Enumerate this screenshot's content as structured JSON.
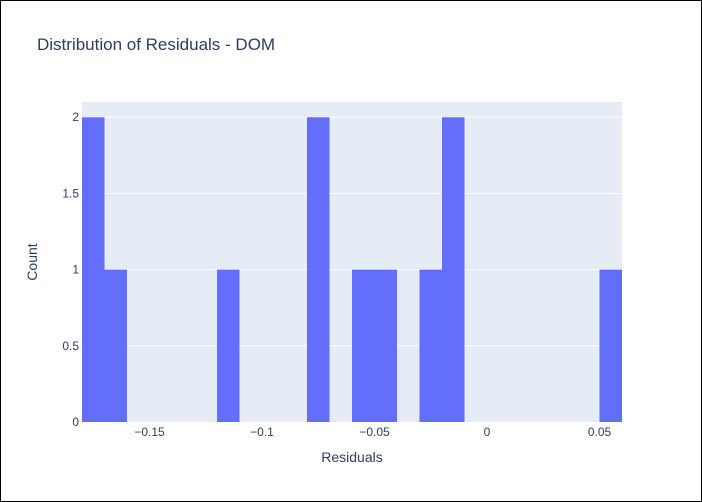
{
  "chart_data": {
    "type": "histogram",
    "title": "Distribution of Residuals - DOM",
    "xlabel": "Residuals",
    "ylabel": "Count",
    "bar_color": "#636efa",
    "plot_bg": "#e5ecf6",
    "grid_color": "#ffffff",
    "text_color": "#2a3f5f",
    "xlim": [
      -0.18,
      0.06
    ],
    "ylim": [
      0,
      2.1
    ],
    "bin_width": 0.01,
    "bins": [
      {
        "x0": -0.18,
        "x1": -0.17,
        "count": 2
      },
      {
        "x0": -0.17,
        "x1": -0.16,
        "count": 1
      },
      {
        "x0": -0.12,
        "x1": -0.11,
        "count": 1
      },
      {
        "x0": -0.08,
        "x1": -0.07,
        "count": 2
      },
      {
        "x0": -0.06,
        "x1": -0.05,
        "count": 1
      },
      {
        "x0": -0.05,
        "x1": -0.04,
        "count": 1
      },
      {
        "x0": -0.03,
        "x1": -0.02,
        "count": 1
      },
      {
        "x0": -0.02,
        "x1": -0.01,
        "count": 2
      },
      {
        "x0": 0.05,
        "x1": 0.06,
        "count": 1
      }
    ],
    "x_ticks": [
      {
        "value": -0.15,
        "label": "−0.15"
      },
      {
        "value": -0.1,
        "label": "−0.1"
      },
      {
        "value": -0.05,
        "label": "−0.05"
      },
      {
        "value": 0,
        "label": "0"
      },
      {
        "value": 0.05,
        "label": "0.05"
      }
    ],
    "y_ticks": [
      {
        "value": 0,
        "label": "0"
      },
      {
        "value": 0.5,
        "label": "0.5"
      },
      {
        "value": 1,
        "label": "1"
      },
      {
        "value": 1.5,
        "label": "1.5"
      },
      {
        "value": 2,
        "label": "2"
      }
    ],
    "grid": true,
    "legend": false
  }
}
